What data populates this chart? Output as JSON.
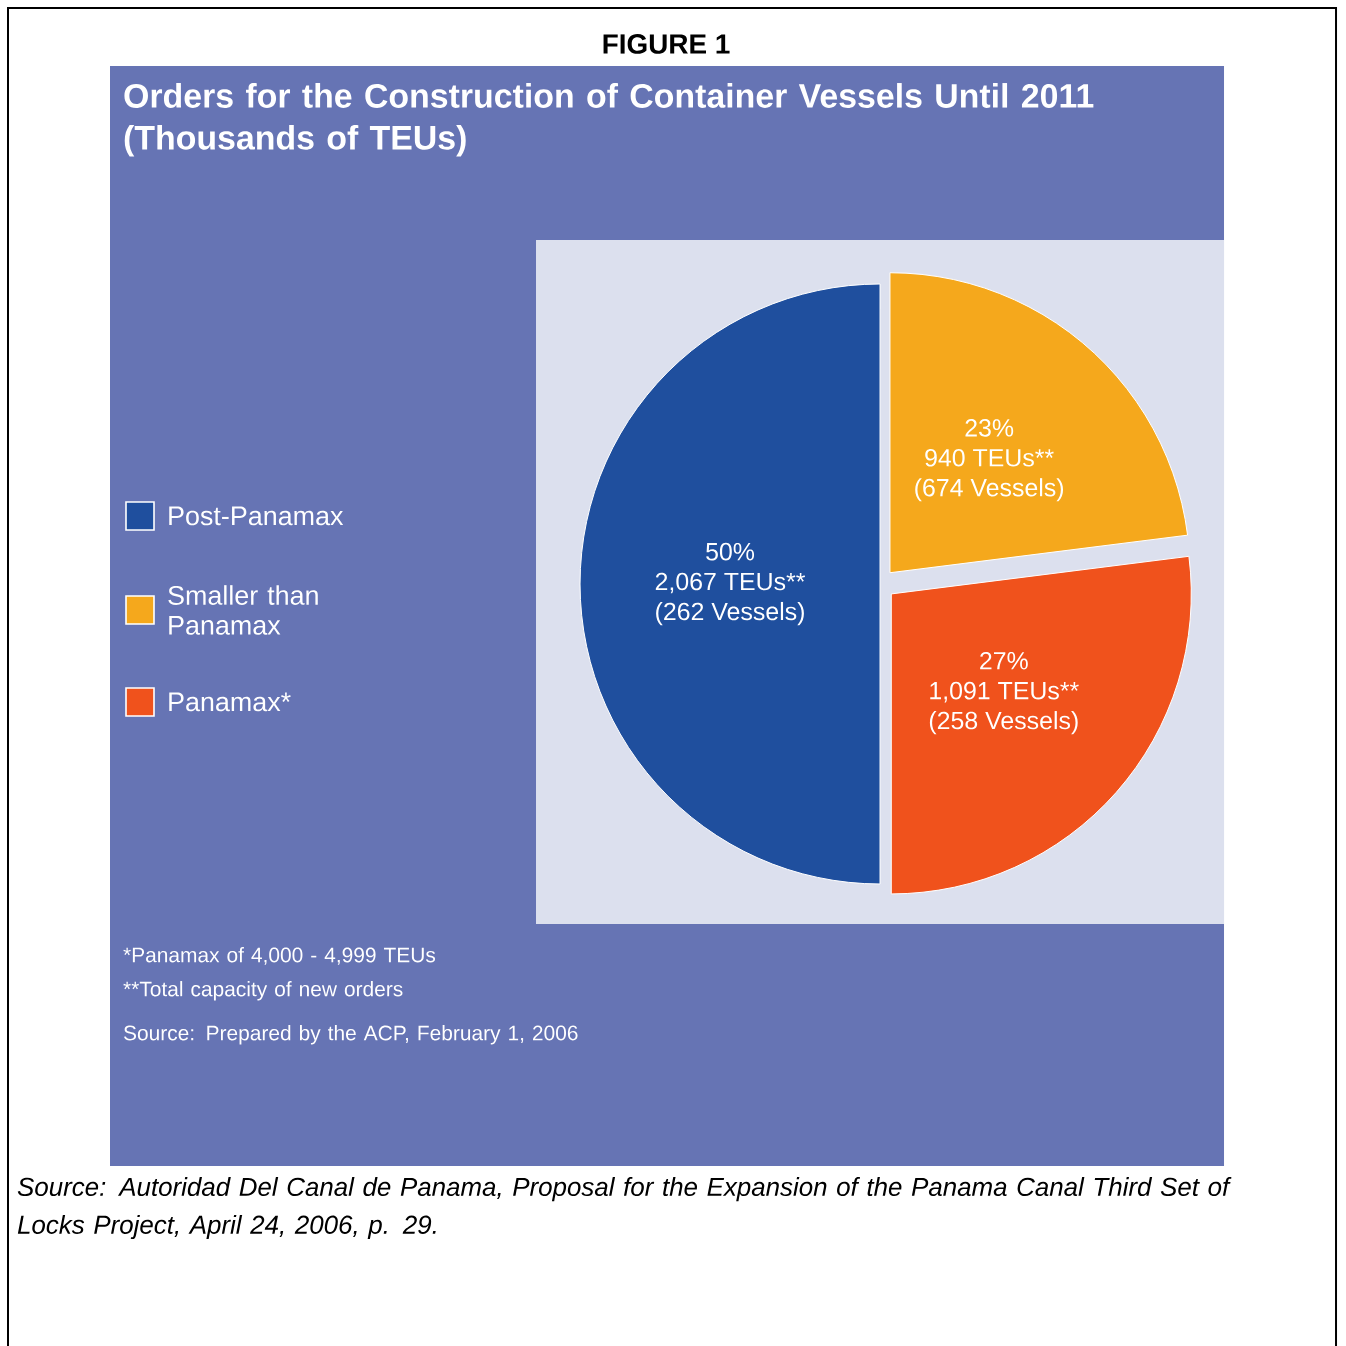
{
  "chart_data": {
    "type": "pie",
    "title": "FIGURE 1",
    "subtitle": "Orders for the Construction of Container Vessels Until 2011 (Thousands of TEUs)",
    "categories": [
      "Post-Panamax",
      "Smaller than Panamax",
      "Panamax*"
    ],
    "values": [
      50,
      23,
      27
    ],
    "colors": [
      "#1f4f9e",
      "#f5a81c",
      "#f0521c"
    ],
    "value_labels": [
      "50%",
      "23%",
      "27%"
    ],
    "legend": "left",
    "annotations": [
      {
        "text": "2,067 TEUs**",
        "x": "Post-Panamax"
      },
      {
        "text": "(262 Vessels)",
        "x": "Post-Panamax"
      },
      {
        "text": "940 TEUs**",
        "x": "Smaller than Panamax"
      },
      {
        "text": "(674 Vessels)",
        "x": "Smaller than Panamax"
      },
      {
        "text": "1,091 TEUs**",
        "x": "Panamax*"
      },
      {
        "text": "(258 Vessels)",
        "x": "Panamax*"
      },
      "*Panamax of 4,000 - 4,999 TEUs",
      "**Total capacity of new orders",
      "Source: Prepared by the ACP, February 1, 2006",
      "*Source:  Autoridad Del Canal de Panama, Proposal for the Expansion of the Panama Canal Third Set of Locks Project, April 24, 2006, p. 29.*"
    ]
  }
}
